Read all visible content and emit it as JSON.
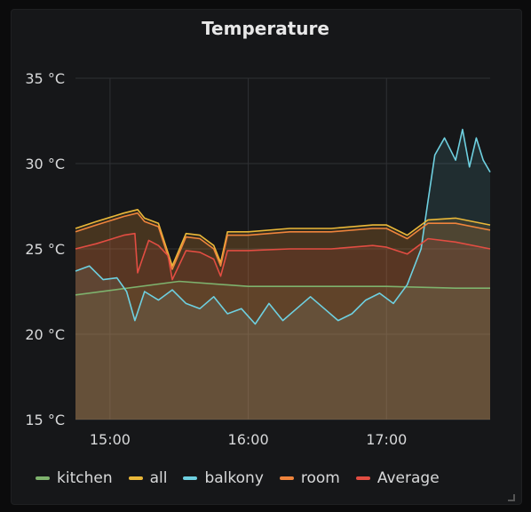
{
  "panel": {
    "title": "Temperature"
  },
  "chart_data": {
    "type": "line",
    "title": "Temperature",
    "ylim": [
      15,
      35
    ],
    "y_ticks": [
      {
        "value": 35,
        "label": "35 °C"
      },
      {
        "value": 30,
        "label": "30 °C"
      },
      {
        "value": 25,
        "label": "25 °C"
      },
      {
        "value": 20,
        "label": "20 °C"
      },
      {
        "value": 15,
        "label": "15 °C"
      }
    ],
    "xlim": [
      14.75,
      17.75
    ],
    "x_ticks": [
      {
        "value": 15,
        "label": "15:00"
      },
      {
        "value": 16,
        "label": "16:00"
      },
      {
        "value": 17,
        "label": "17:00"
      }
    ],
    "grid": true,
    "legend_position": "bottom",
    "series": [
      {
        "name": "kitchen",
        "color": "#7eb26d",
        "x": [
          14.75,
          15.5,
          16.0,
          16.5,
          17.0,
          17.5,
          17.75
        ],
        "y": [
          22.3,
          23.1,
          22.8,
          22.8,
          22.8,
          22.7,
          22.7
        ]
      },
      {
        "name": "all",
        "color": "#eab839",
        "x": [
          14.75,
          14.9,
          15.1,
          15.2,
          15.25,
          15.35,
          15.45,
          15.55,
          15.65,
          15.75,
          15.8,
          15.85,
          16.0,
          16.3,
          16.6,
          16.9,
          17.0,
          17.15,
          17.3,
          17.5,
          17.75
        ],
        "y": [
          26.2,
          26.6,
          27.1,
          27.3,
          26.8,
          26.5,
          24.0,
          25.9,
          25.8,
          25.2,
          24.2,
          26.0,
          26.0,
          26.2,
          26.2,
          26.4,
          26.4,
          25.8,
          26.7,
          26.8,
          26.4
        ]
      },
      {
        "name": "balkony",
        "color": "#6ed0e0",
        "x": [
          14.75,
          14.85,
          14.95,
          15.05,
          15.12,
          15.18,
          15.25,
          15.35,
          15.45,
          15.55,
          15.65,
          15.75,
          15.85,
          15.95,
          16.05,
          16.15,
          16.25,
          16.35,
          16.45,
          16.55,
          16.65,
          16.75,
          16.85,
          16.95,
          17.05,
          17.15,
          17.25,
          17.3,
          17.35,
          17.42,
          17.5,
          17.55,
          17.6,
          17.65,
          17.7,
          17.75
        ],
        "y": [
          23.7,
          24.0,
          23.2,
          23.3,
          22.5,
          20.8,
          22.5,
          22.0,
          22.6,
          21.8,
          21.5,
          22.2,
          21.2,
          21.5,
          20.6,
          21.8,
          20.8,
          21.5,
          22.2,
          21.5,
          20.8,
          21.2,
          22.0,
          22.4,
          21.8,
          22.9,
          25.0,
          27.8,
          30.5,
          31.5,
          30.2,
          32.0,
          29.8,
          31.5,
          30.2,
          29.5
        ]
      },
      {
        "name": "room",
        "color": "#ef843c",
        "x": [
          14.75,
          14.9,
          15.1,
          15.2,
          15.25,
          15.35,
          15.45,
          15.55,
          15.65,
          15.75,
          15.8,
          15.85,
          16.0,
          16.3,
          16.6,
          16.9,
          17.0,
          17.15,
          17.3,
          17.5,
          17.75
        ],
        "y": [
          26.0,
          26.4,
          26.9,
          27.1,
          26.6,
          26.3,
          23.8,
          25.7,
          25.6,
          25.0,
          24.0,
          25.8,
          25.8,
          26.0,
          26.0,
          26.2,
          26.2,
          25.6,
          26.5,
          26.5,
          26.1
        ]
      },
      {
        "name": "Average",
        "color": "#e24d42",
        "x": [
          14.75,
          14.9,
          15.1,
          15.18,
          15.2,
          15.28,
          15.35,
          15.42,
          15.45,
          15.55,
          15.65,
          15.75,
          15.8,
          15.85,
          16.0,
          16.3,
          16.6,
          16.9,
          17.0,
          17.15,
          17.3,
          17.5,
          17.75
        ],
        "y": [
          25.0,
          25.3,
          25.8,
          25.9,
          23.6,
          25.5,
          25.2,
          24.6,
          23.2,
          24.9,
          24.8,
          24.4,
          23.4,
          24.9,
          24.9,
          25.0,
          25.0,
          25.2,
          25.1,
          24.7,
          25.6,
          25.4,
          25.0
        ]
      }
    ]
  }
}
